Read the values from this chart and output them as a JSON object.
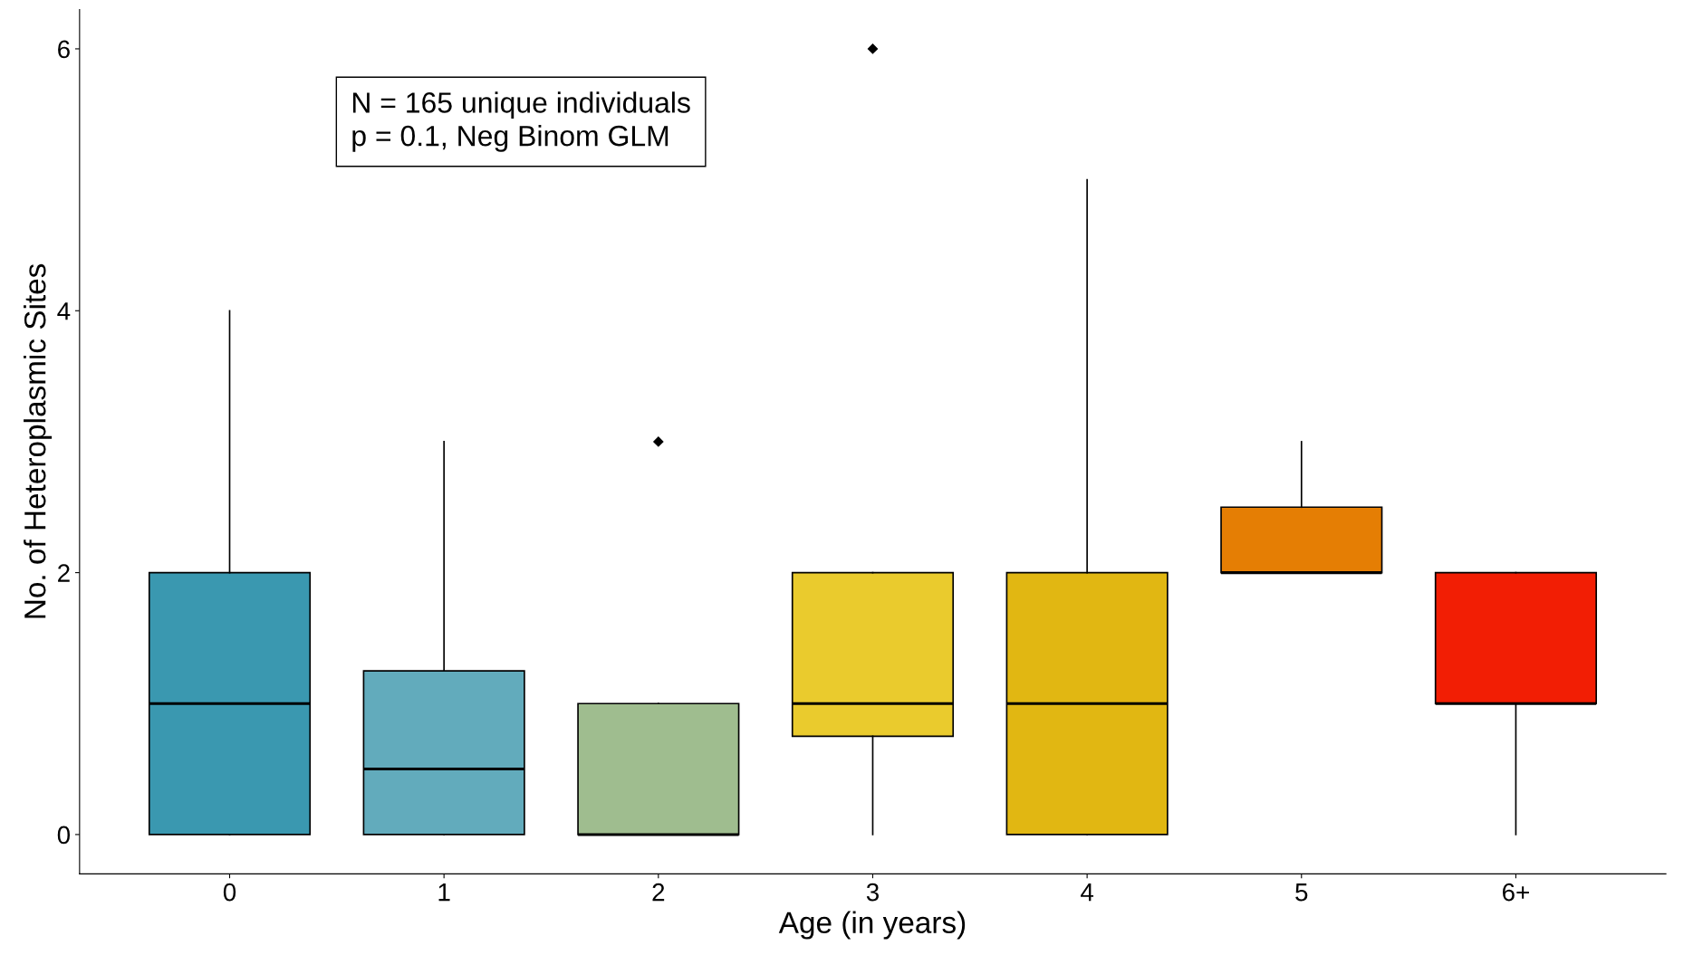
{
  "chart_data": {
    "type": "box",
    "xlabel": "Age (in years)",
    "ylabel": "No. of Heteroplasmic Sites",
    "categories": [
      "0",
      "1",
      "2",
      "3",
      "4",
      "5",
      "6+"
    ],
    "colors": [
      "#3a98b0",
      "#62abbc",
      "#9fbd8f",
      "#eacb2d",
      "#e1b712",
      "#e57e04",
      "#f21e04"
    ],
    "boxes": [
      {
        "low": 0,
        "q1": 0,
        "median": 1,
        "q3": 2,
        "high": 4
      },
      {
        "low": 0,
        "q1": 0,
        "median": 0.5,
        "q3": 1.25,
        "high": 3
      },
      {
        "low": 0,
        "q1": 0,
        "median": 0,
        "q3": 1,
        "high": 1,
        "outliers": [
          3
        ]
      },
      {
        "low": 0,
        "q1": 0.75,
        "median": 1,
        "q3": 2,
        "high": 2,
        "outliers": [
          6
        ]
      },
      {
        "low": 0,
        "q1": 0,
        "median": 1,
        "q3": 2,
        "high": 5
      },
      {
        "low": 2,
        "q1": 2,
        "median": 2,
        "q3": 2.5,
        "high": 3
      },
      {
        "low": 0,
        "q1": 1,
        "median": 1,
        "q3": 2,
        "high": 2
      }
    ],
    "ylim": [
      -0.3,
      6.3
    ],
    "yticks": [
      0,
      2,
      4,
      6
    ],
    "annotations": [
      "N = 165 unique individuals\np = 0.1, Neg Binom GLM"
    ],
    "grid": false,
    "marker": "diamond"
  }
}
